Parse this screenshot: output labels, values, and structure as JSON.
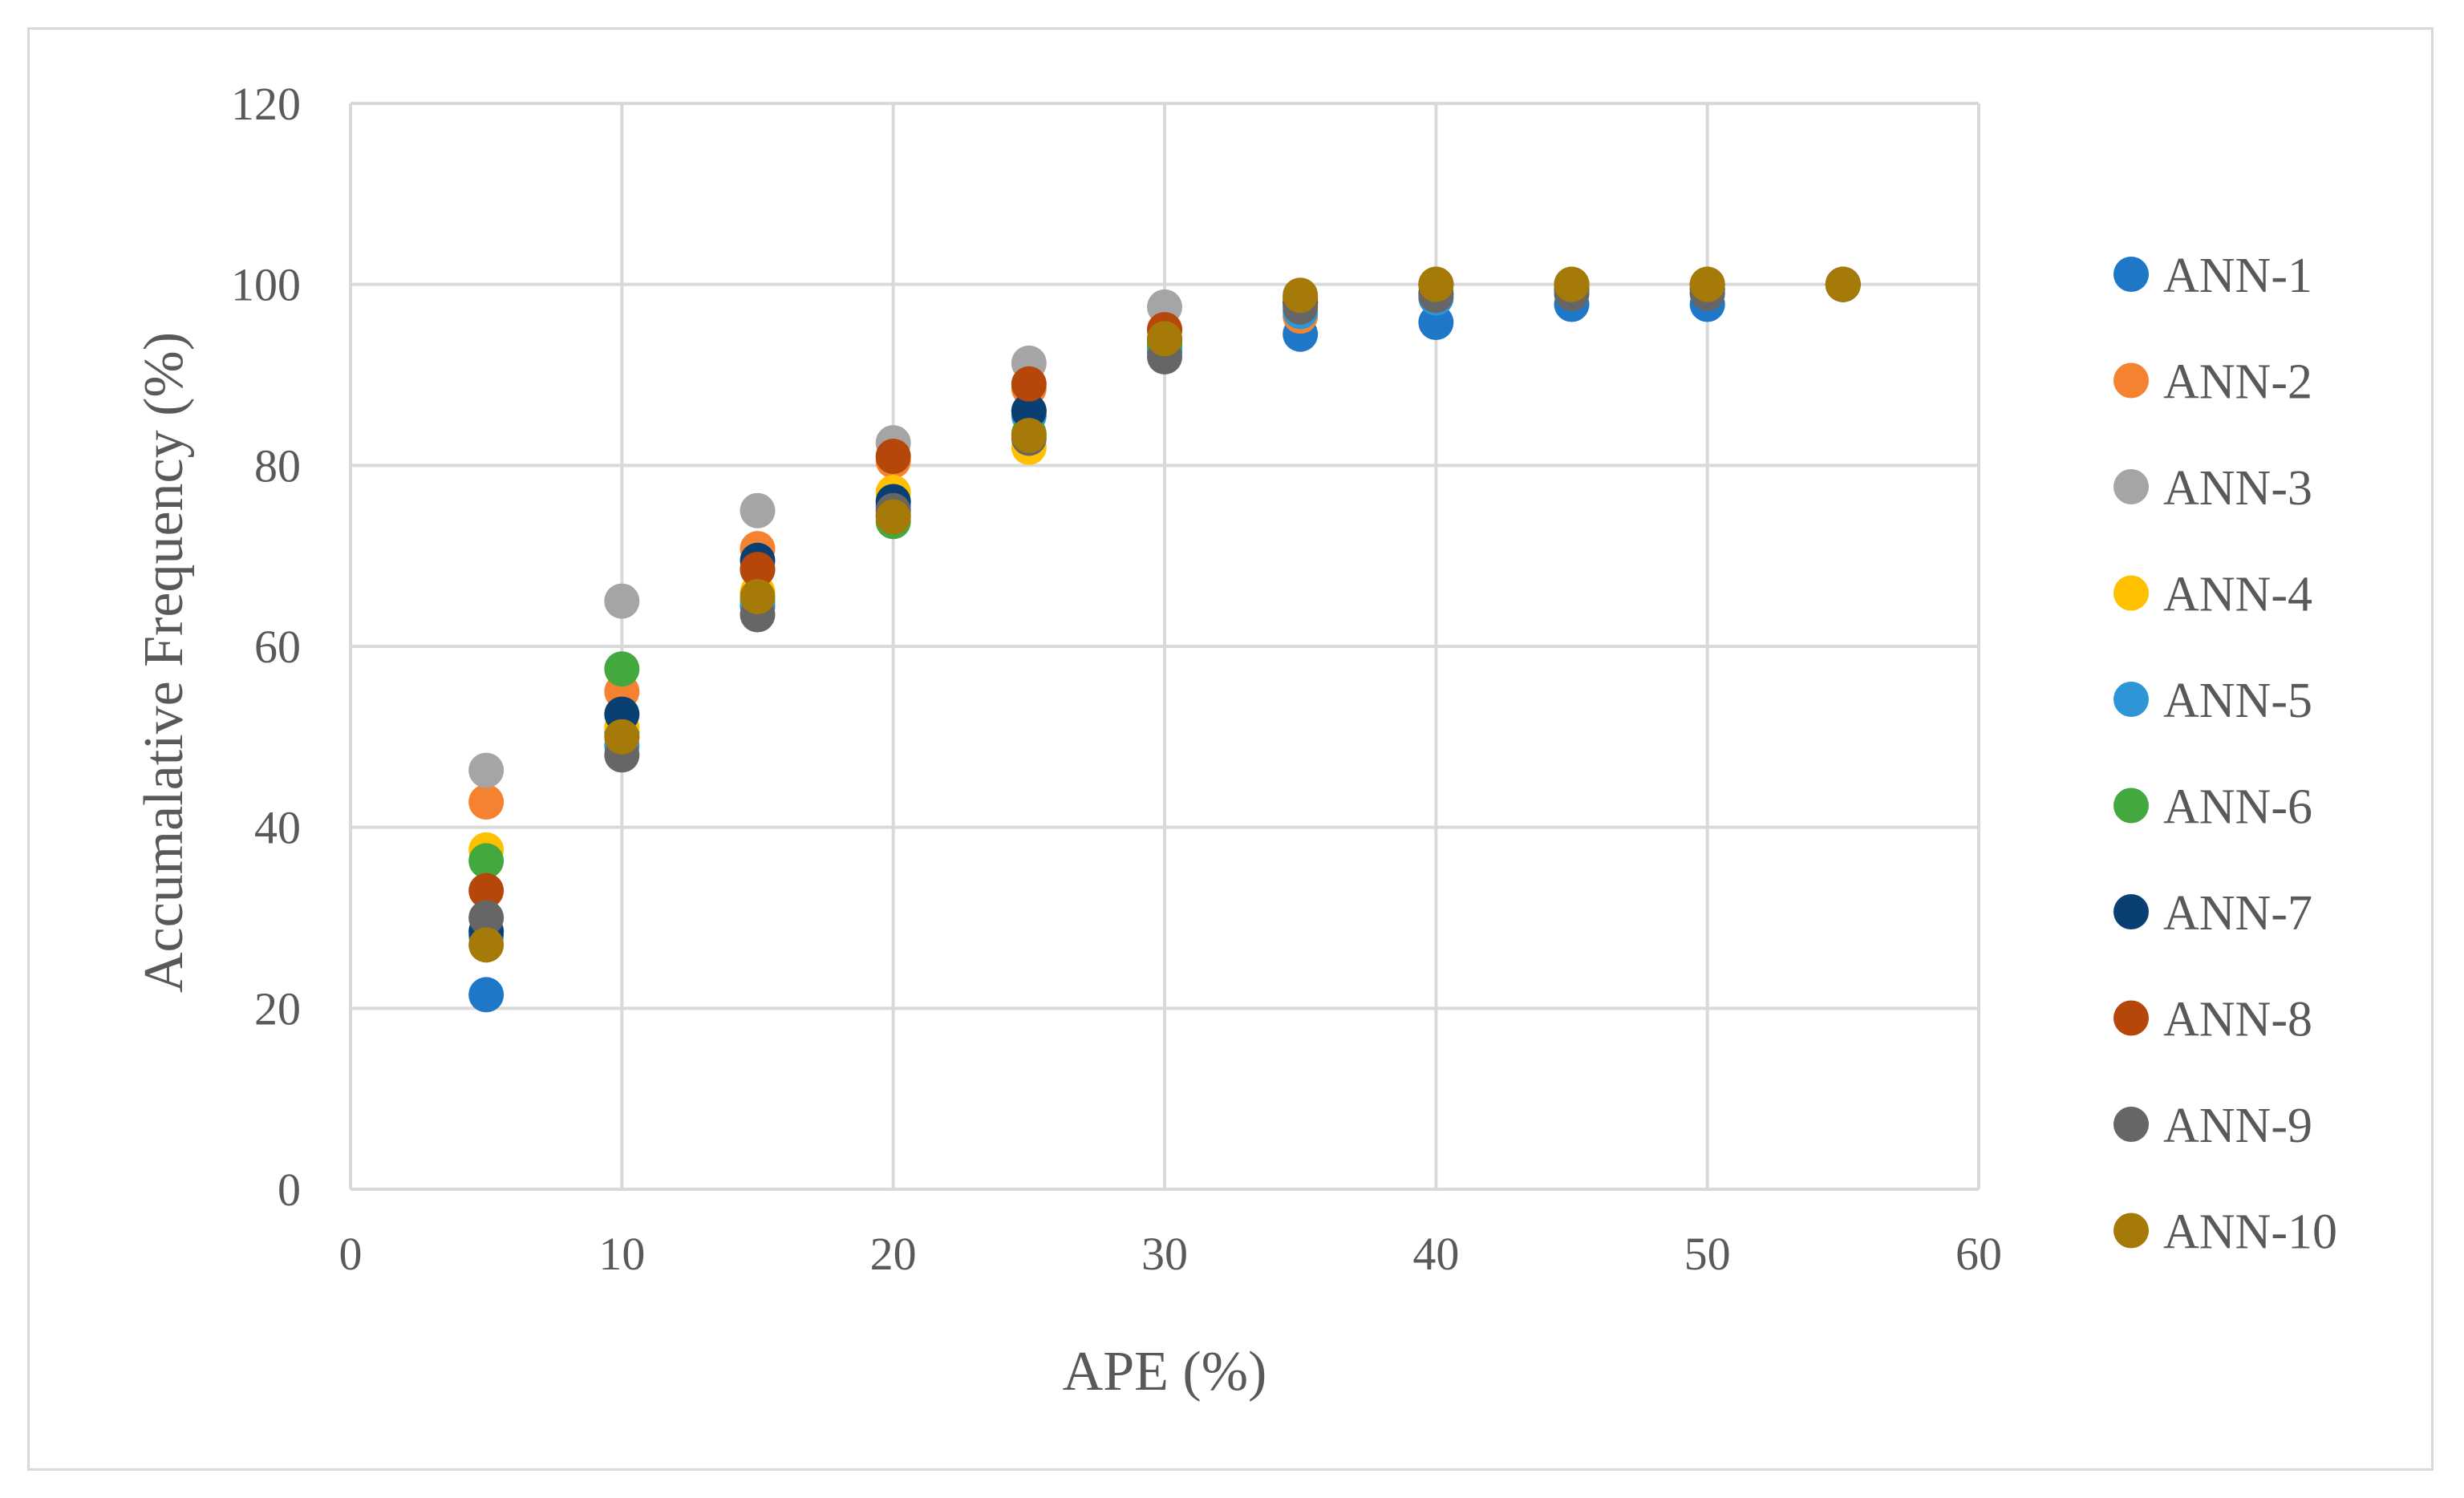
{
  "chart_data": {
    "type": "scatter",
    "title": "",
    "xlabel": "APE (%)",
    "ylabel": "Accumalative Frequency (%)",
    "xlim": [
      0,
      60
    ],
    "ylim": [
      0,
      120
    ],
    "x_ticks": [
      0,
      10,
      20,
      30,
      40,
      50,
      60
    ],
    "y_ticks": [
      0,
      20,
      40,
      60,
      80,
      100,
      120
    ],
    "grid": true,
    "legend_position": "right",
    "series": [
      {
        "name": "ANN-1",
        "color": "#1f77c8",
        "x": [
          5,
          10,
          15,
          20,
          25,
          30,
          35,
          40,
          45,
          50,
          55
        ],
        "y": [
          21.5,
          50.5,
          64.5,
          74.5,
          86,
          92.5,
          94.5,
          95.8,
          97.8,
          97.8,
          100
        ]
      },
      {
        "name": "ANN-2",
        "color": "#f58231",
        "x": [
          5,
          10,
          15,
          20,
          25,
          30,
          35,
          40,
          45,
          50,
          55
        ],
        "y": [
          42.8,
          55,
          70.8,
          80.5,
          88.5,
          95,
          96.5,
          100,
          100,
          100,
          100
        ]
      },
      {
        "name": "ANN-3",
        "color": "#a5a5a5",
        "x": [
          5,
          10,
          15,
          20,
          25,
          30,
          35,
          40,
          45,
          50,
          55
        ],
        "y": [
          46.3,
          65,
          75,
          82.5,
          91.3,
          97.5,
          98.5,
          100,
          100,
          100,
          100
        ]
      },
      {
        "name": "ANN-4",
        "color": "#ffc000",
        "x": [
          5,
          10,
          15,
          20,
          25,
          30,
          35,
          40,
          45,
          50,
          55
        ],
        "y": [
          37.5,
          51,
          66,
          77,
          82,
          93.5,
          98.5,
          100,
          100,
          100,
          100
        ]
      },
      {
        "name": "ANN-5",
        "color": "#2e96d6",
        "x": [
          5,
          10,
          15,
          20,
          25,
          30,
          35,
          40,
          45,
          50,
          55
        ],
        "y": [
          28,
          49,
          65,
          75.5,
          85.5,
          93,
          97,
          98.5,
          99,
          99,
          100
        ]
      },
      {
        "name": "ANN-6",
        "color": "#43a83d",
        "x": [
          5,
          10,
          15,
          20,
          25,
          30,
          35,
          40,
          45,
          50,
          55
        ],
        "y": [
          36.3,
          57.5,
          68.5,
          73.8,
          83.5,
          93.5,
          98,
          100,
          100,
          100,
          100
        ]
      },
      {
        "name": "ANN-7",
        "color": "#0a3f74",
        "x": [
          5,
          10,
          15,
          20,
          25,
          30,
          35,
          40,
          45,
          50,
          55
        ],
        "y": [
          28.5,
          52.5,
          69.5,
          76,
          86,
          94,
          98,
          99,
          99.5,
          99.5,
          100
        ]
      },
      {
        "name": "ANN-8",
        "color": "#b5470b",
        "x": [
          5,
          10,
          15,
          20,
          25,
          30,
          35,
          40,
          45,
          50,
          55
        ],
        "y": [
          33,
          50,
          68.5,
          81,
          89,
          95,
          98.5,
          100,
          100,
          100,
          100
        ]
      },
      {
        "name": "ANN-9",
        "color": "#666666",
        "x": [
          5,
          10,
          15,
          20,
          25,
          30,
          35,
          40,
          45,
          50,
          55
        ],
        "y": [
          30,
          48,
          63.5,
          75,
          83,
          92,
          97.5,
          98.8,
          99,
          99,
          100
        ]
      },
      {
        "name": "ANN-10",
        "color": "#a57a08",
        "x": [
          5,
          10,
          15,
          20,
          25,
          30,
          35,
          40,
          45,
          50,
          55
        ],
        "y": [
          27,
          50,
          65.5,
          74.3,
          83.3,
          94,
          98.8,
          100,
          100,
          100,
          100
        ]
      }
    ]
  }
}
